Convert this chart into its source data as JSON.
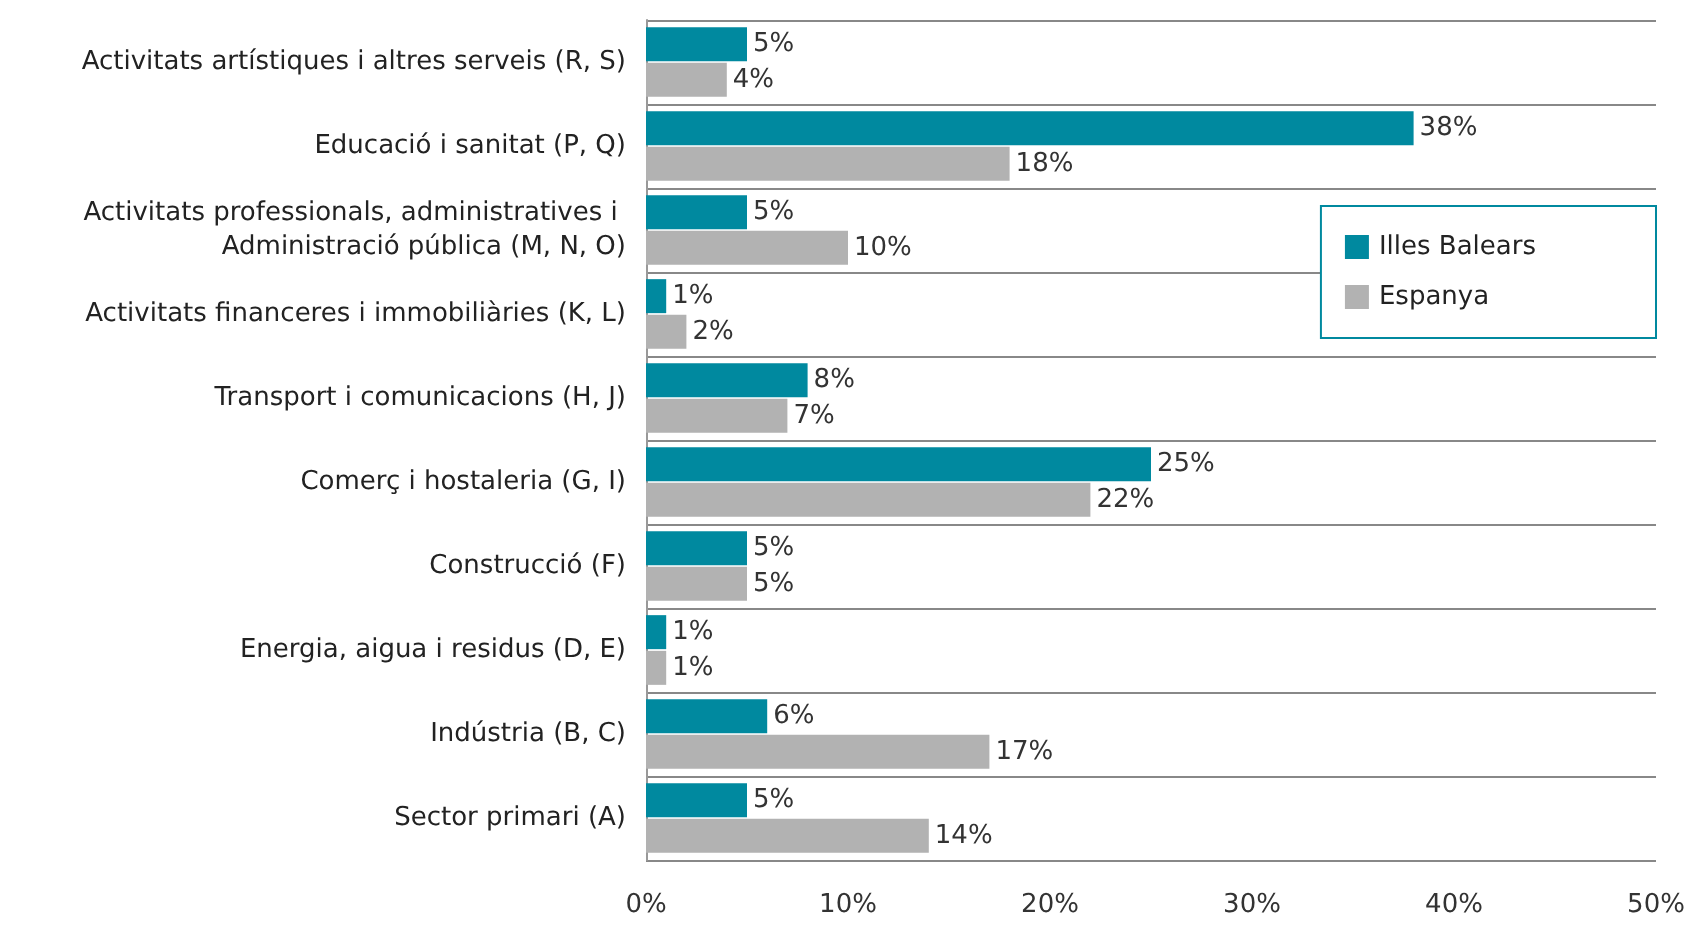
{
  "chart_data": {
    "type": "bar",
    "orientation": "horizontal",
    "categories": [
      "Activitats artístiques i altres serveis (R, S)",
      "Educació i sanitat (P, Q)",
      "Activitats professionals, administratives i Administració pública (M, N, O)",
      "Activitats financeres i immobiliàries (K, L)",
      "Transport i comunicacions (H, J)",
      "Comerç i hostaleria (G, I)",
      "Construcció (F)",
      "Energia, aigua i residus (D, E)",
      "Indústria (B, C)",
      "Sector primari (A)"
    ],
    "series": [
      {
        "name": "Illes Balears",
        "color": "#00899f",
        "values": [
          5,
          38,
          5,
          1,
          8,
          25,
          5,
          1,
          6,
          5
        ],
        "value_labels": [
          "5%",
          "38%",
          "5%",
          "1%",
          "8%",
          "25%",
          "5%",
          "1%",
          "6%",
          "5%"
        ]
      },
      {
        "name": "Espanya",
        "color": "#b2b2b2",
        "values": [
          4,
          18,
          10,
          2,
          7,
          22,
          5,
          1,
          17,
          14
        ],
        "value_labels": [
          "4%",
          "18%",
          "10%",
          "2%",
          "7%",
          "22%",
          "5%",
          "1%",
          "17%",
          "14%"
        ]
      }
    ],
    "xlim": [
      0,
      50
    ],
    "xticks": [
      {
        "value": 0,
        "label": "0%"
      },
      {
        "value": 10,
        "label": "10%"
      },
      {
        "value": 20,
        "label": "20%"
      },
      {
        "value": 30,
        "label": "30%"
      },
      {
        "value": 40,
        "label": "40%"
      },
      {
        "value": 50,
        "label": "50%"
      }
    ],
    "grid": "y",
    "legend": "right"
  }
}
